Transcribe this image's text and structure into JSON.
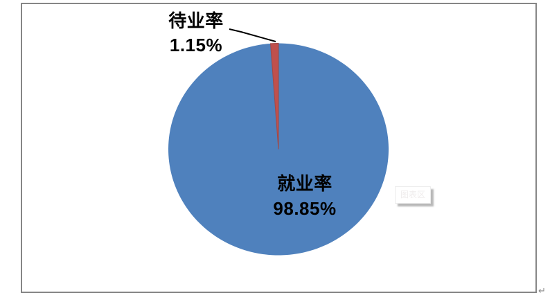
{
  "chart_data": {
    "type": "pie",
    "title": "",
    "categories": [
      "就业率",
      "待业率"
    ],
    "values": [
      98.85,
      1.15
    ],
    "slices": [
      {
        "id": "employment",
        "label": "就业率",
        "value": 98.85,
        "display": "98.85%",
        "color": "#4f81bd",
        "label_position": "inside-lower-right"
      },
      {
        "id": "unemployment",
        "label": "待业率",
        "value": 1.15,
        "display": "1.15%",
        "color": "#c0504d",
        "border": "#a24845",
        "label_position": "outside-top-left-with-leader-line"
      }
    ],
    "start_angle_deg": 0,
    "direction": "clockwise",
    "legend": "none",
    "grid": false,
    "unit": "%"
  },
  "overlay": {
    "tooltip_text": "图表区"
  },
  "document": {
    "paragraph_mark": "↵"
  },
  "colors": {
    "chart_border": "#868686",
    "leader_line": "#000000",
    "background": "#ffffff",
    "label_text": "#000000"
  }
}
